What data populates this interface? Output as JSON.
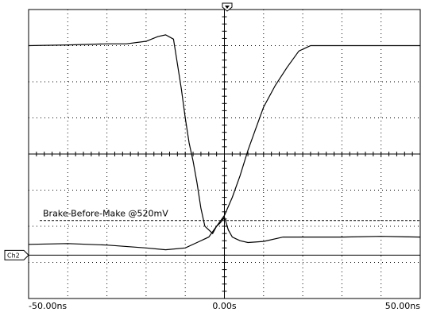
{
  "chart_data": {
    "type": "line",
    "title": "",
    "xlabel": "",
    "ylabel": "",
    "x_unit": "ns",
    "xlim": [
      -50,
      50
    ],
    "ylim": [
      -4,
      4
    ],
    "grid": true,
    "x_tick_labels": [
      {
        "x": -50,
        "label": "-50.00ns"
      },
      {
        "x": 0,
        "label": "0.00s"
      },
      {
        "x": 50,
        "label": "50.00ns"
      }
    ],
    "channel_marker": {
      "label": "Ch2",
      "y": -2.8
    },
    "trigger_marker_x": 0,
    "annotation": {
      "text": "Brake-Before-Make @520mV",
      "y": -1.84
    },
    "series": [
      {
        "points": [
          [
            -50,
            3.0
          ],
          [
            -40,
            3.02
          ],
          [
            -30,
            3.05
          ],
          [
            -25,
            3.05
          ],
          [
            -20,
            3.12
          ],
          [
            -17,
            3.25
          ],
          [
            -15,
            3.3
          ],
          [
            -13,
            3.18
          ],
          [
            -12,
            2.5
          ],
          [
            -11,
            1.8
          ],
          [
            -10,
            1.0
          ],
          [
            -9,
            0.3
          ],
          [
            -8,
            -0.2
          ],
          [
            -7,
            -0.8
          ],
          [
            -6,
            -1.5
          ],
          [
            -5,
            -2.0
          ],
          [
            -4,
            -2.1
          ],
          [
            -3,
            -2.2
          ],
          [
            -2,
            -2.0
          ],
          [
            -1,
            -1.9
          ],
          [
            0,
            -1.75
          ],
          [
            1,
            -2.1
          ],
          [
            2,
            -2.3
          ],
          [
            3,
            -2.35
          ],
          [
            4,
            -2.4
          ],
          [
            6,
            -2.45
          ],
          [
            10,
            -2.42
          ],
          [
            15,
            -2.3
          ],
          [
            20,
            -2.3
          ],
          [
            30,
            -2.3
          ],
          [
            40,
            -2.28
          ],
          [
            50,
            -2.3
          ]
        ]
      },
      {
        "points": [
          [
            -50,
            -2.5
          ],
          [
            -40,
            -2.48
          ],
          [
            -30,
            -2.52
          ],
          [
            -20,
            -2.6
          ],
          [
            -15,
            -2.65
          ],
          [
            -10,
            -2.6
          ],
          [
            -7,
            -2.45
          ],
          [
            -4,
            -2.3
          ],
          [
            -2,
            -2.0
          ],
          [
            -1,
            -1.85
          ],
          [
            0,
            -1.7
          ],
          [
            2,
            -1.2
          ],
          [
            4,
            -0.6
          ],
          [
            6,
            0.1
          ],
          [
            8,
            0.7
          ],
          [
            10,
            1.3
          ],
          [
            13,
            1.9
          ],
          [
            16,
            2.4
          ],
          [
            19,
            2.85
          ],
          [
            22,
            3.0
          ],
          [
            30,
            3.0
          ],
          [
            40,
            3.0
          ],
          [
            50,
            3.0
          ]
        ]
      }
    ]
  }
}
